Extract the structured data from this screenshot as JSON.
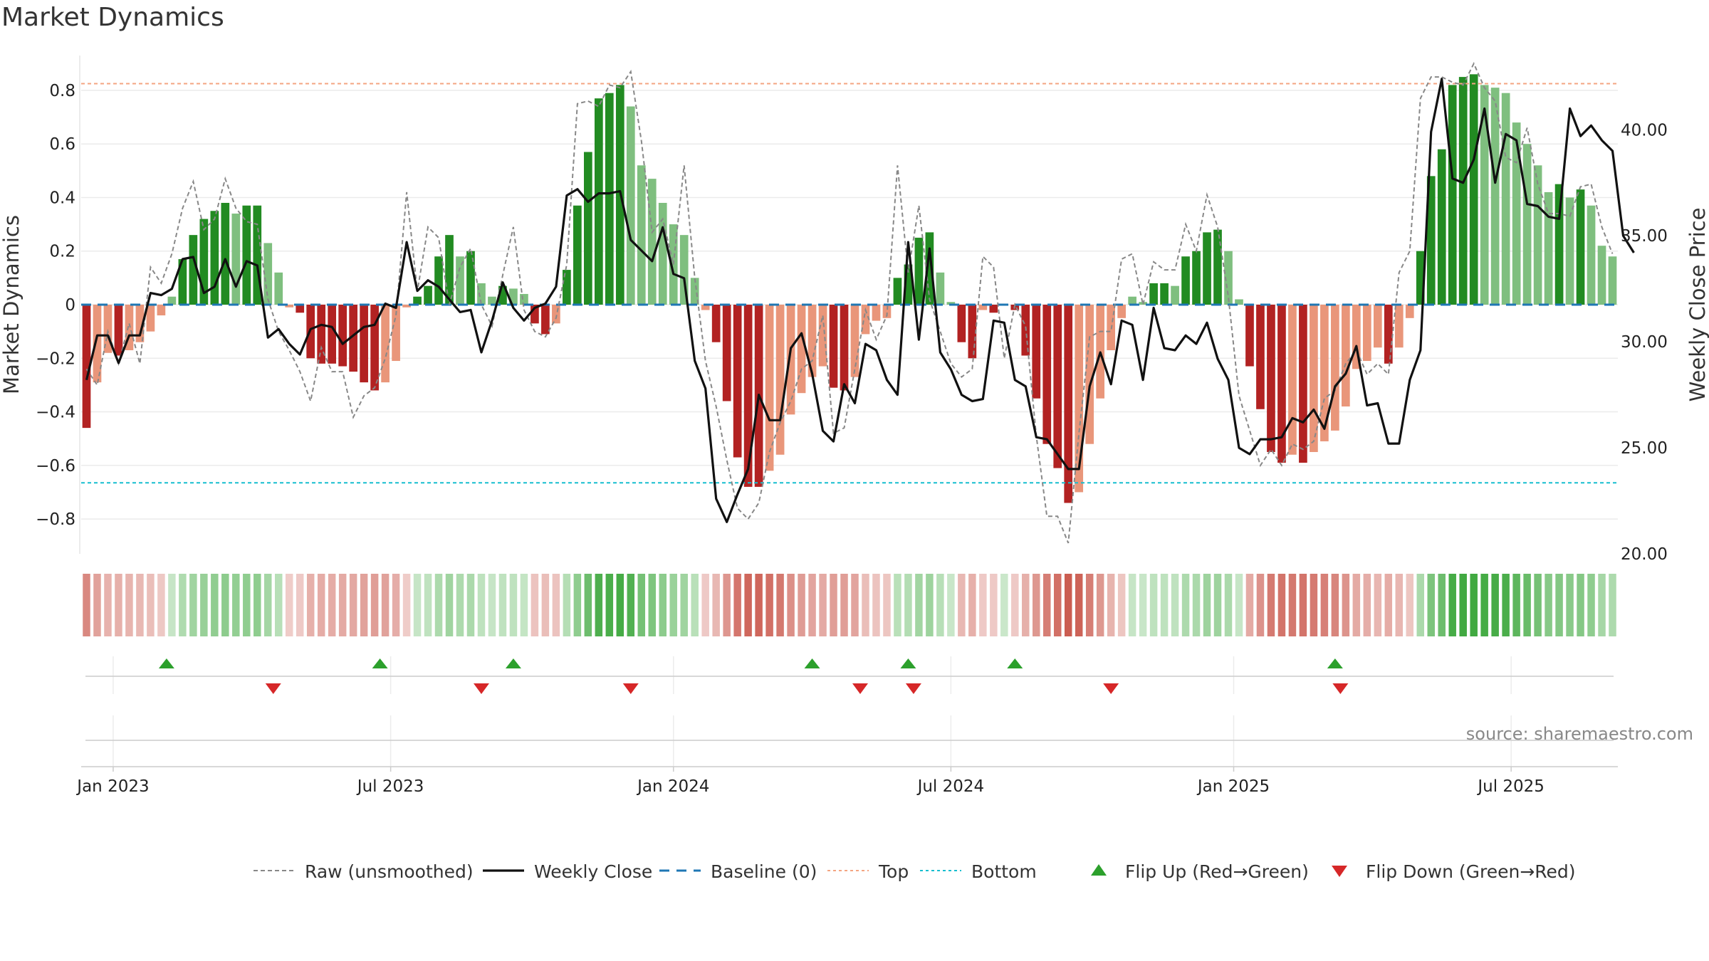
{
  "title": "Market Dynamics",
  "chart_data": {
    "type": "bar",
    "title": "Market Dynamics",
    "ylabel_left": "Market Dynamics",
    "ylabel_right": "Weekly Close Price",
    "ylim_left": [
      -0.93,
      0.93
    ],
    "ylim_right": [
      20.0,
      43.5
    ],
    "yticks_left": [
      "0.8",
      "0.6",
      "0.4",
      "0.2",
      "0",
      "−0.2",
      "−0.4",
      "−0.6",
      "−0.8"
    ],
    "yticks_left_values": [
      0.8,
      0.6,
      0.4,
      0.2,
      0,
      -0.2,
      -0.4,
      -0.6,
      -0.8
    ],
    "yticks_right": [
      "40.00",
      "35.00",
      "30.00",
      "25.00",
      "20.00"
    ],
    "yticks_right_values": [
      40,
      35,
      30,
      25,
      20
    ],
    "x_ticks": [
      "Jan 2023",
      "Jul 2023",
      "Jan 2024",
      "Jul 2024",
      "Jan 2025",
      "Jul 2025"
    ],
    "x_tick_weeks": [
      2.5,
      28.5,
      55,
      81,
      107.5,
      133.5
    ],
    "top_threshold": 0.825,
    "bottom_threshold": -0.665,
    "baseline": 0,
    "smoothed": [
      -0.46,
      -0.29,
      -0.18,
      -0.19,
      -0.17,
      -0.14,
      -0.1,
      -0.04,
      0.03,
      0.17,
      0.26,
      0.32,
      0.35,
      0.38,
      0.34,
      0.37,
      0.37,
      0.23,
      0.12,
      -0.01,
      -0.03,
      -0.2,
      -0.22,
      -0.22,
      -0.23,
      -0.25,
      -0.29,
      -0.32,
      -0.29,
      -0.21,
      -0.01,
      0.03,
      0.07,
      0.18,
      0.26,
      0.18,
      0.2,
      0.08,
      0.03,
      0.07,
      0.06,
      0.04,
      -0.07,
      -0.11,
      -0.07,
      0.13,
      0.37,
      0.57,
      0.77,
      0.79,
      0.82,
      0.74,
      0.52,
      0.47,
      0.38,
      0.3,
      0.26,
      0.1,
      -0.02,
      -0.14,
      -0.36,
      -0.57,
      -0.68,
      -0.68,
      -0.62,
      -0.56,
      -0.41,
      -0.33,
      -0.27,
      -0.23,
      -0.31,
      -0.32,
      -0.27,
      -0.11,
      -0.06,
      -0.05,
      0.1,
      0.15,
      0.25,
      0.27,
      0.12,
      0.01,
      -0.14,
      -0.2,
      -0.02,
      -0.03,
      0.0,
      -0.02,
      -0.19,
      -0.35,
      -0.52,
      -0.61,
      -0.74,
      -0.7,
      -0.52,
      -0.35,
      -0.17,
      -0.05,
      0.03,
      0.01,
      0.08,
      0.08,
      0.07,
      0.18,
      0.2,
      0.27,
      0.28,
      0.2,
      0.02,
      -0.23,
      -0.39,
      -0.55,
      -0.59,
      -0.56,
      -0.59,
      -0.55,
      -0.51,
      -0.47,
      -0.38,
      -0.24,
      -0.21,
      -0.16,
      -0.22,
      -0.16,
      -0.05,
      0.2,
      0.48,
      0.58,
      0.82,
      0.85,
      0.86,
      0.82,
      0.81,
      0.79,
      0.68,
      0.6,
      0.52,
      0.42,
      0.45,
      0.4,
      0.43,
      0.37,
      0.22,
      0.18
    ],
    "raw": [
      -0.24,
      -0.3,
      -0.1,
      -0.22,
      -0.07,
      -0.22,
      0.14,
      0.08,
      0.19,
      0.36,
      0.46,
      0.28,
      0.32,
      0.47,
      0.36,
      0.31,
      0.3,
      0.02,
      -0.1,
      -0.17,
      -0.25,
      -0.36,
      -0.16,
      -0.25,
      -0.25,
      -0.42,
      -0.34,
      -0.31,
      -0.2,
      -0.04,
      0.42,
      0.05,
      0.29,
      0.25,
      0.0,
      0.14,
      0.21,
      0.0,
      -0.08,
      0.11,
      0.29,
      -0.02,
      -0.1,
      -0.12,
      -0.05,
      0.15,
      0.75,
      0.76,
      0.74,
      0.82,
      0.81,
      0.87,
      0.61,
      0.27,
      0.32,
      0.15,
      0.52,
      0.1,
      -0.21,
      -0.38,
      -0.58,
      -0.76,
      -0.8,
      -0.74,
      -0.55,
      -0.44,
      -0.36,
      -0.24,
      -0.21,
      -0.04,
      -0.48,
      -0.46,
      -0.24,
      -0.02,
      -0.13,
      -0.04,
      0.52,
      0.12,
      0.37,
      0.02,
      -0.1,
      -0.22,
      -0.27,
      -0.24,
      0.18,
      0.14,
      -0.2,
      0.0,
      -0.08,
      -0.49,
      -0.79,
      -0.79,
      -0.89,
      -0.48,
      -0.12,
      -0.1,
      -0.1,
      0.17,
      0.19,
      0.0,
      0.16,
      0.13,
      0.13,
      0.3,
      0.2,
      0.41,
      0.29,
      0.03,
      -0.34,
      -0.47,
      -0.6,
      -0.54,
      -0.6,
      -0.52,
      -0.54,
      -0.51,
      -0.35,
      -0.32,
      -0.22,
      -0.17,
      -0.26,
      -0.22,
      -0.26,
      0.12,
      0.2,
      0.77,
      0.85,
      0.85,
      0.83,
      0.82,
      0.9,
      0.81,
      0.76,
      0.55,
      0.53,
      0.66,
      0.45,
      0.34,
      0.34,
      0.33,
      0.44,
      0.45,
      0.29,
      0.19
    ],
    "close": [
      28.2,
      30.3,
      30.3,
      29.0,
      30.3,
      30.3,
      32.3,
      32.2,
      32.5,
      33.9,
      34.0,
      32.3,
      32.6,
      33.9,
      32.6,
      33.8,
      33.6,
      30.2,
      30.6,
      29.9,
      29.4,
      30.6,
      30.8,
      30.7,
      29.9,
      30.3,
      30.7,
      30.8,
      31.8,
      31.6,
      34.7,
      32.4,
      32.9,
      32.6,
      32.0,
      31.4,
      31.5,
      29.5,
      31.0,
      32.8,
      31.6,
      31.0,
      31.6,
      31.8,
      32.6,
      36.9,
      37.2,
      36.6,
      37.0,
      37.0,
      37.1,
      34.8,
      34.3,
      33.8,
      35.4,
      33.2,
      33.0,
      29.1,
      27.8,
      22.6,
      21.5,
      22.8,
      24.0,
      27.5,
      26.3,
      26.3,
      29.7,
      30.4,
      28.5,
      25.8,
      25.3,
      28.0,
      27.1,
      29.9,
      29.6,
      28.2,
      27.5,
      34.7,
      30.1,
      34.4,
      29.5,
      28.7,
      27.5,
      27.2,
      27.3,
      31.0,
      30.9,
      28.2,
      27.9,
      25.5,
      25.4,
      24.7,
      24.0,
      24.0,
      27.9,
      29.5,
      28.0,
      31.0,
      30.8,
      28.2,
      31.6,
      29.7,
      29.6,
      30.3,
      29.9,
      30.9,
      29.2,
      28.2,
      25.0,
      24.7,
      25.4,
      25.4,
      25.5,
      26.4,
      26.2,
      26.8,
      25.9,
      27.9,
      28.5,
      29.8,
      27.0,
      27.1,
      25.2,
      25.2,
      28.2,
      29.6,
      39.9,
      42.4,
      37.7,
      37.5,
      38.6,
      41.0,
      37.5,
      39.8,
      39.5,
      36.5,
      36.4,
      35.9,
      35.8,
      41.0,
      39.7,
      40.2,
      39.5,
      39.0,
      35.0,
      34.2
    ],
    "flip_up_weeks": [
      7.5,
      27.5,
      40,
      68,
      77,
      87,
      117
    ],
    "flip_down_weeks": [
      17.5,
      37,
      51,
      72.5,
      77.5,
      96,
      117.5
    ],
    "legend": [
      {
        "label": "Raw (unsmoothed)",
        "style": "dashed",
        "color": "#888888"
      },
      {
        "label": "Weekly Close",
        "style": "solid",
        "color": "#111111"
      },
      {
        "label": "Baseline (0)",
        "style": "dashed",
        "color": "#1f77b4"
      },
      {
        "label": "Top",
        "style": "dotted",
        "color": "#f4a582"
      },
      {
        "label": "Bottom",
        "style": "dotted",
        "color": "#17becf"
      },
      {
        "label": "Flip Up (Red→Green)",
        "style": "triangle-up",
        "color": "#2ca02c"
      },
      {
        "label": "Flip Down (Green→Red)",
        "style": "triangle-down",
        "color": "#d62728"
      }
    ],
    "colors": {
      "green_strong": "#228B22",
      "green_light": "#7fbf7f",
      "red_strong": "#b22222",
      "red_light": "#e9967a",
      "flip_up": "#2ca02c",
      "flip_down": "#d62728"
    }
  },
  "source": "source: sharemaestro.com"
}
